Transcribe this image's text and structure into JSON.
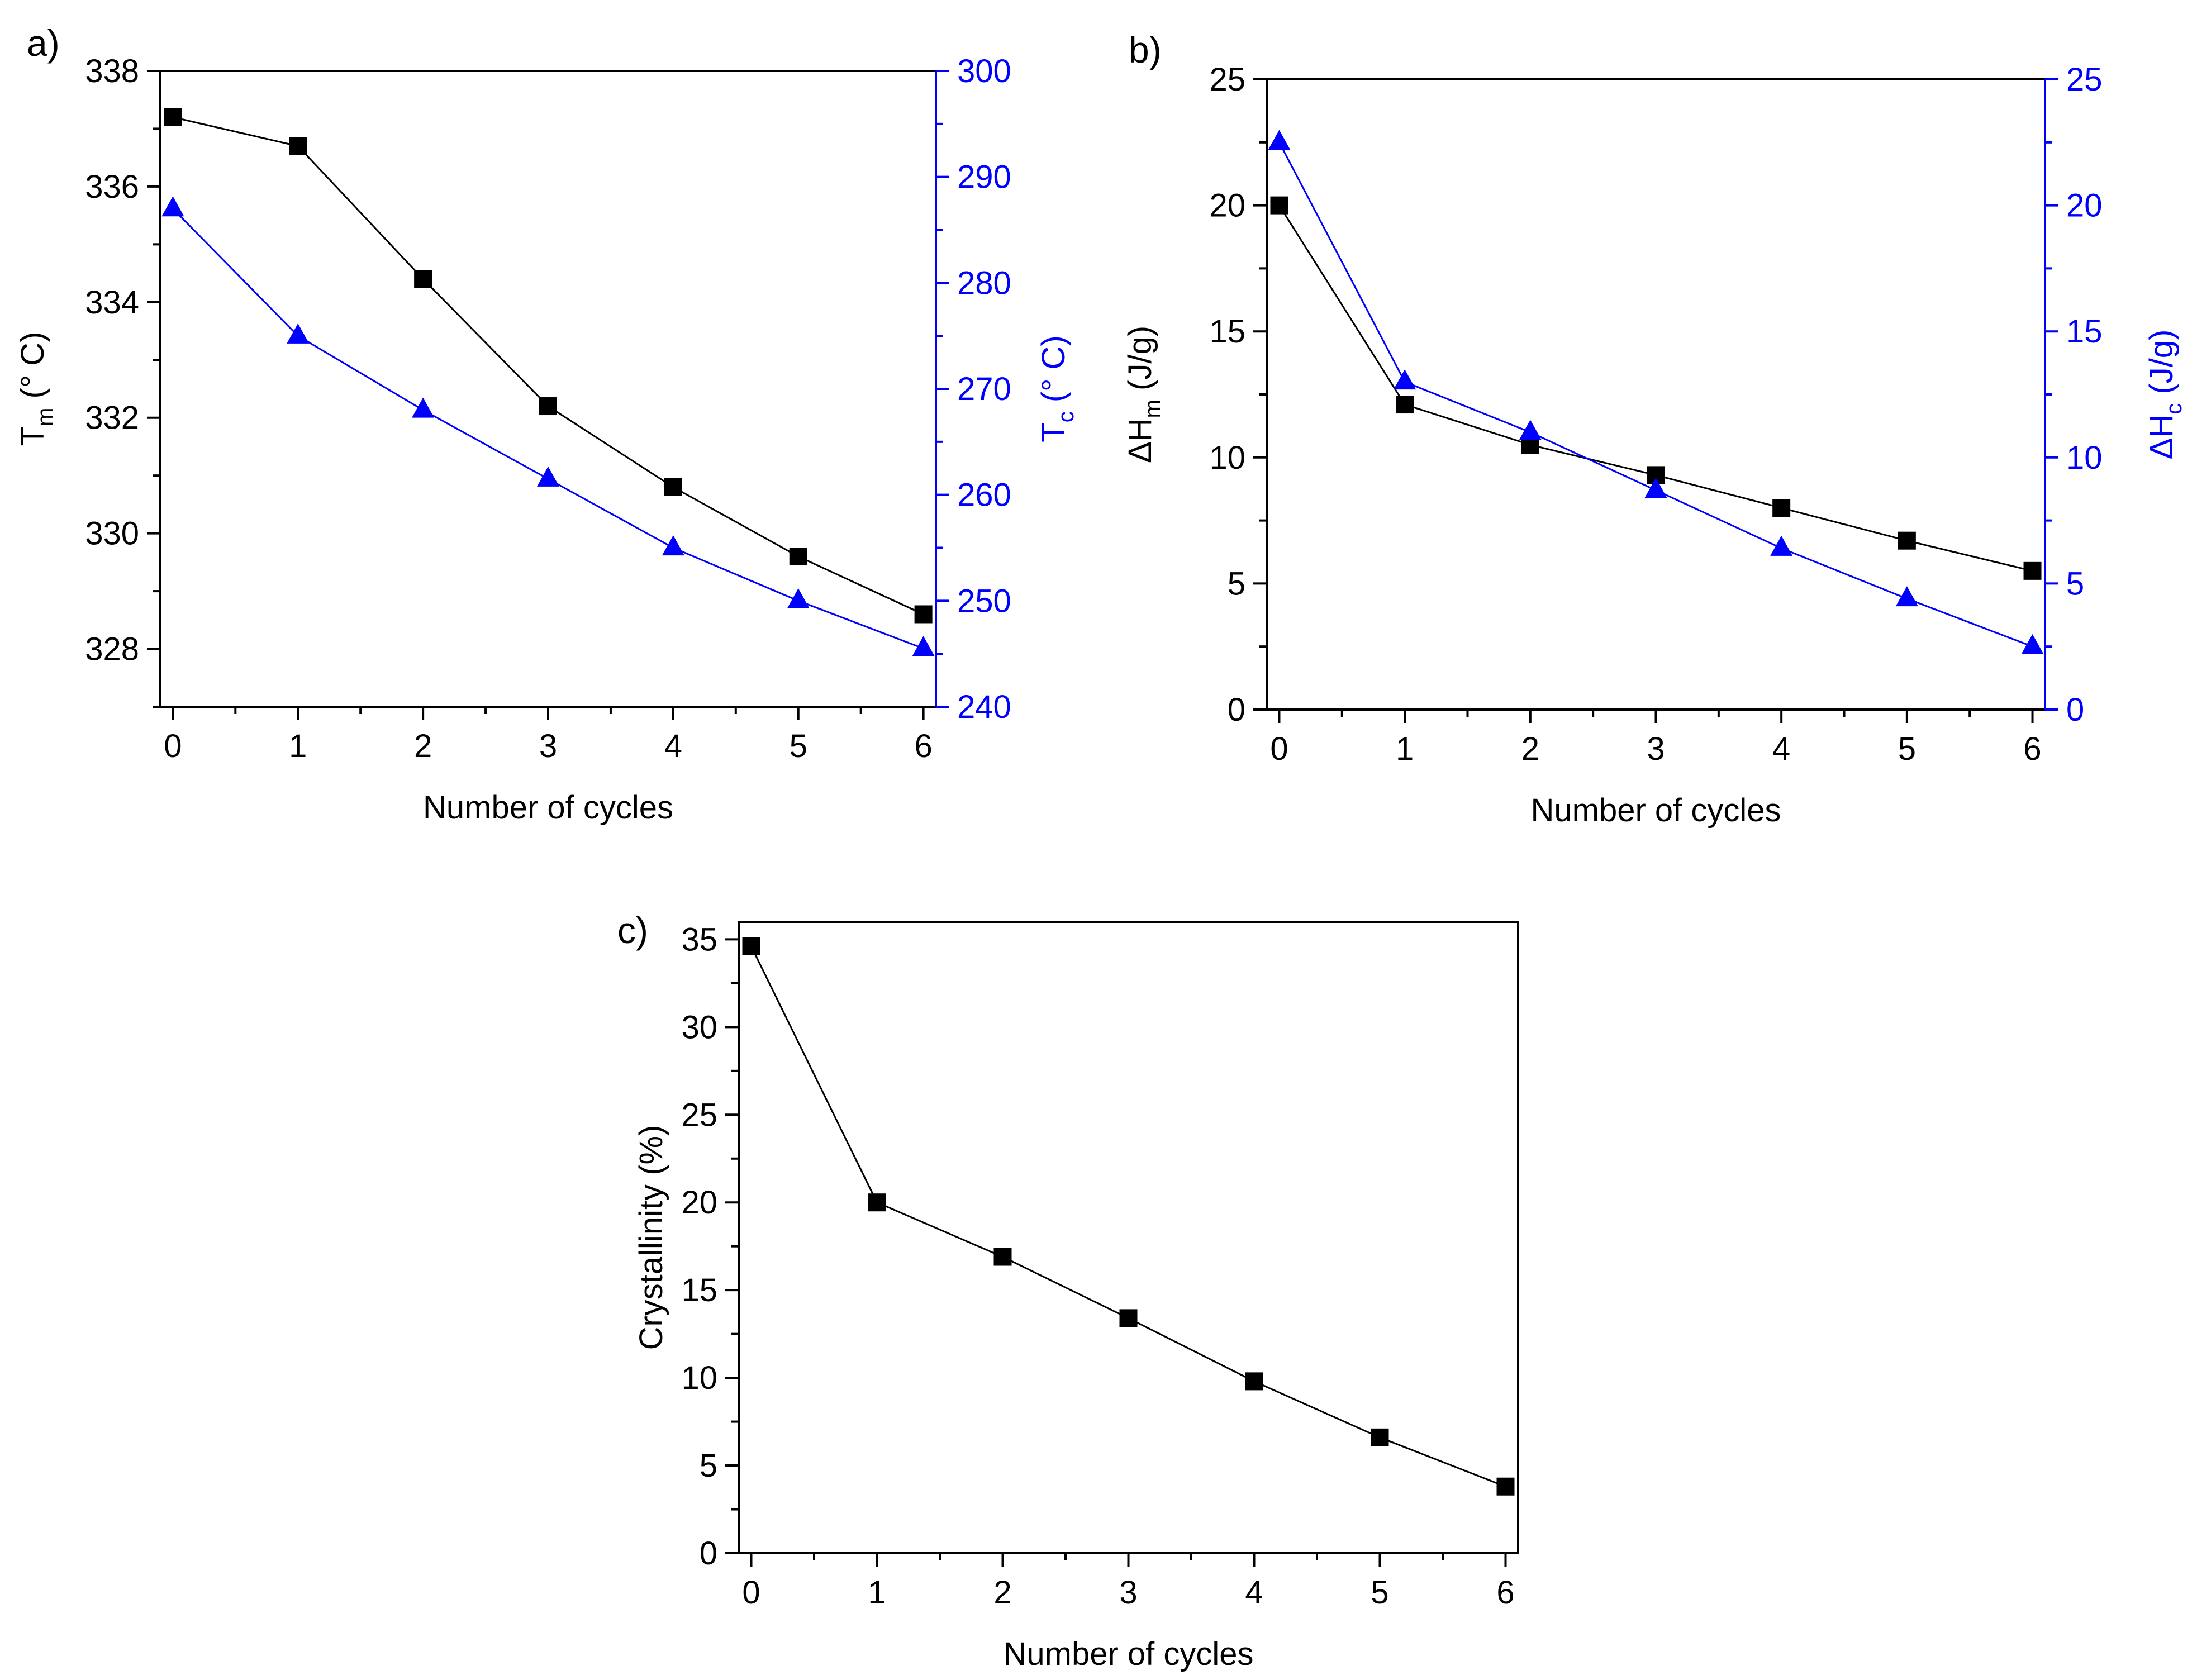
{
  "chart_data": [
    {
      "type": "line",
      "panel_label": "a)",
      "x": [
        0,
        1,
        2,
        3,
        4,
        5,
        6
      ],
      "xlabel": "Number of cycles",
      "xlim": [
        -0.1,
        6.1
      ],
      "xticks": [
        "0",
        "1",
        "2",
        "3",
        "4",
        "5",
        "6"
      ],
      "y_left": {
        "label": "T",
        "label_sub": "m",
        "label_rest": " (° C)",
        "range": [
          327,
          338
        ],
        "ticks": [
          "328",
          "330",
          "332",
          "334",
          "336",
          "338"
        ],
        "color": "#000000"
      },
      "y_right": {
        "label": "T",
        "label_sub": "c",
        "label_rest": " (° C)",
        "range": [
          240,
          300
        ],
        "ticks": [
          "240",
          "250",
          "260",
          "270",
          "280",
          "290",
          "300"
        ],
        "color": "#0000ff"
      },
      "series": [
        {
          "name": "Tm",
          "axis": "left",
          "marker": "square",
          "color": "#000000",
          "values": [
            337.2,
            336.7,
            334.4,
            332.2,
            330.8,
            329.6,
            328.6
          ]
        },
        {
          "name": "Tc",
          "axis": "right",
          "marker": "triangle",
          "color": "#0000ff",
          "values": [
            287.0,
            275.0,
            268.0,
            261.5,
            255.0,
            250.0,
            245.5
          ]
        }
      ]
    },
    {
      "type": "line",
      "panel_label": "b)",
      "x": [
        0,
        1,
        2,
        3,
        4,
        5,
        6
      ],
      "xlabel": "Number of cycles",
      "xlim": [
        -0.1,
        6.1
      ],
      "xticks": [
        "0",
        "1",
        "2",
        "3",
        "4",
        "5",
        "6"
      ],
      "y_left": {
        "label": "ΔH",
        "label_sub": "m",
        "label_rest": " (J/g)",
        "range": [
          0,
          25
        ],
        "ticks": [
          "0",
          "5",
          "10",
          "15",
          "20",
          "25"
        ],
        "color": "#000000"
      },
      "y_right": {
        "label": "ΔH",
        "label_sub": "c",
        "label_rest": " (J/g)",
        "range": [
          0,
          25
        ],
        "ticks": [
          "0",
          "5",
          "10",
          "15",
          "20",
          "25"
        ],
        "color": "#0000ff"
      },
      "series": [
        {
          "name": "ΔHm",
          "axis": "left",
          "marker": "square",
          "color": "#000000",
          "values": [
            20.0,
            12.1,
            10.5,
            9.3,
            8.0,
            6.7,
            5.5
          ]
        },
        {
          "name": "ΔHc",
          "axis": "right",
          "marker": "triangle",
          "color": "#0000ff",
          "values": [
            22.5,
            13.0,
            11.0,
            8.7,
            6.4,
            4.4,
            2.5
          ]
        }
      ]
    },
    {
      "type": "line",
      "panel_label": "c)",
      "x": [
        0,
        1,
        2,
        3,
        4,
        5,
        6
      ],
      "xlabel": "Number of cycles",
      "xlim": [
        -0.1,
        6.1
      ],
      "xticks": [
        "0",
        "1",
        "2",
        "3",
        "4",
        "5",
        "6"
      ],
      "y_left": {
        "label": "Crystallinity (%)",
        "label_sub": "",
        "label_rest": "",
        "range": [
          0,
          36
        ],
        "ticks": [
          "0",
          "5",
          "10",
          "15",
          "20",
          "25",
          "30",
          "35"
        ],
        "color": "#000000"
      },
      "series": [
        {
          "name": "Crystallinity",
          "axis": "left",
          "marker": "square",
          "color": "#000000",
          "values": [
            34.6,
            20.0,
            16.9,
            13.4,
            9.8,
            6.6,
            3.8
          ]
        }
      ]
    }
  ]
}
